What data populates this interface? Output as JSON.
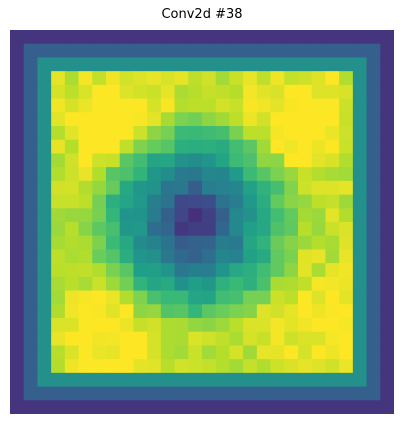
{
  "chart_data": {
    "type": "heatmap",
    "title": "Conv2d #38",
    "colormap": "viridis",
    "axes": "off",
    "grid": false,
    "rows": 28,
    "cols": 28,
    "vmin": 0,
    "vmax": 1,
    "palette": [
      "#440154",
      "#482878",
      "#3e4989",
      "#31688e",
      "#26828e",
      "#1f9e89",
      "#35b779",
      "#6ece58",
      "#b5de2b",
      "#fde725"
    ]
  }
}
